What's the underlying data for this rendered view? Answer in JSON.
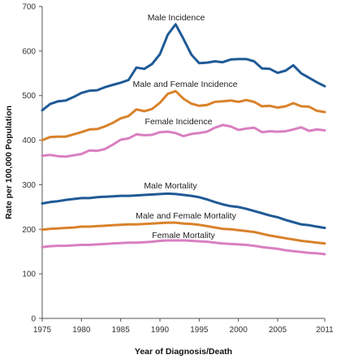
{
  "chart_data": {
    "type": "line",
    "title": "",
    "xlabel": "Year of Diagnosis/Death",
    "ylabel": "Rate per 100,000 Population",
    "xlim": [
      1975,
      2011
    ],
    "ylim": [
      0,
      700
    ],
    "x_ticks": [
      1975,
      1980,
      1985,
      1990,
      1995,
      2000,
      2005,
      2011
    ],
    "y_ticks": [
      0,
      100,
      200,
      300,
      400,
      500,
      600,
      700
    ],
    "grid": false,
    "legend": "inline labels",
    "x": [
      1975,
      1976,
      1977,
      1978,
      1979,
      1980,
      1981,
      1982,
      1983,
      1984,
      1985,
      1986,
      1987,
      1988,
      1989,
      1990,
      1991,
      1992,
      1993,
      1994,
      1995,
      1996,
      1997,
      1998,
      1999,
      2000,
      2001,
      2002,
      2003,
      2004,
      2005,
      2006,
      2007,
      2008,
      2009,
      2010,
      2011
    ],
    "series": [
      {
        "name": "Male Incidence",
        "color": "#1f5a96",
        "values": [
          467,
          481,
          487,
          489,
          497,
          506,
          511,
          512,
          519,
          524,
          529,
          535,
          563,
          560,
          571,
          593,
          637,
          660,
          627,
          592,
          573,
          574,
          577,
          575,
          581,
          582,
          582,
          577,
          561,
          560,
          551,
          556,
          568,
          550,
          540,
          530,
          521
        ]
      },
      {
        "name": "Male and Female Incidence",
        "color": "#d9822b",
        "values": [
          400,
          407,
          408,
          408,
          413,
          418,
          424,
          425,
          431,
          439,
          449,
          454,
          469,
          465,
          470,
          484,
          504,
          510,
          493,
          482,
          477,
          479,
          486,
          487,
          489,
          486,
          490,
          486,
          476,
          477,
          473,
          476,
          483,
          476,
          475,
          466,
          463
        ]
      },
      {
        "name": "Female Incidence",
        "color": "#d97fc0",
        "values": [
          365,
          367,
          364,
          363,
          366,
          369,
          377,
          376,
          380,
          390,
          401,
          404,
          413,
          411,
          412,
          418,
          419,
          416,
          409,
          414,
          416,
          419,
          428,
          434,
          431,
          423,
          426,
          428,
          418,
          420,
          419,
          420,
          424,
          429,
          421,
          424,
          422
        ]
      },
      {
        "name": "Male Mortality",
        "color": "#1f5a96",
        "values": [
          258,
          261,
          263,
          266,
          268,
          270,
          270,
          272,
          273,
          274,
          275,
          275,
          276,
          277,
          278,
          279,
          280,
          279,
          277,
          275,
          272,
          267,
          261,
          256,
          252,
          250,
          246,
          241,
          236,
          231,
          227,
          221,
          216,
          211,
          209,
          206,
          203
        ]
      },
      {
        "name": "Male and Female Mortality",
        "color": "#d9822b",
        "values": [
          199,
          201,
          202,
          203,
          204,
          206,
          206,
          207,
          208,
          209,
          210,
          211,
          211,
          212,
          213,
          214,
          215,
          215,
          213,
          212,
          210,
          207,
          204,
          201,
          200,
          198,
          196,
          194,
          190,
          186,
          183,
          180,
          177,
          174,
          172,
          170,
          168
        ]
      },
      {
        "name": "Female Mortality",
        "color": "#d97fc0",
        "values": [
          160,
          162,
          163,
          163,
          164,
          165,
          165,
          166,
          167,
          168,
          169,
          170,
          170,
          171,
          172,
          174,
          175,
          175,
          175,
          174,
          173,
          172,
          170,
          168,
          167,
          166,
          165,
          163,
          160,
          158,
          156,
          153,
          151,
          149,
          147,
          146,
          144
        ]
      }
    ],
    "annotations": [
      {
        "text": "Male Incidence",
        "series": 0
      },
      {
        "text": "Male and Female Incidence",
        "series": 1
      },
      {
        "text": "Female Incidence",
        "series": 2
      },
      {
        "text": "Male Mortality",
        "series": 3
      },
      {
        "text": "Male and Female Mortality",
        "series": 4
      },
      {
        "text": "Female Mortality",
        "series": 5
      }
    ]
  }
}
